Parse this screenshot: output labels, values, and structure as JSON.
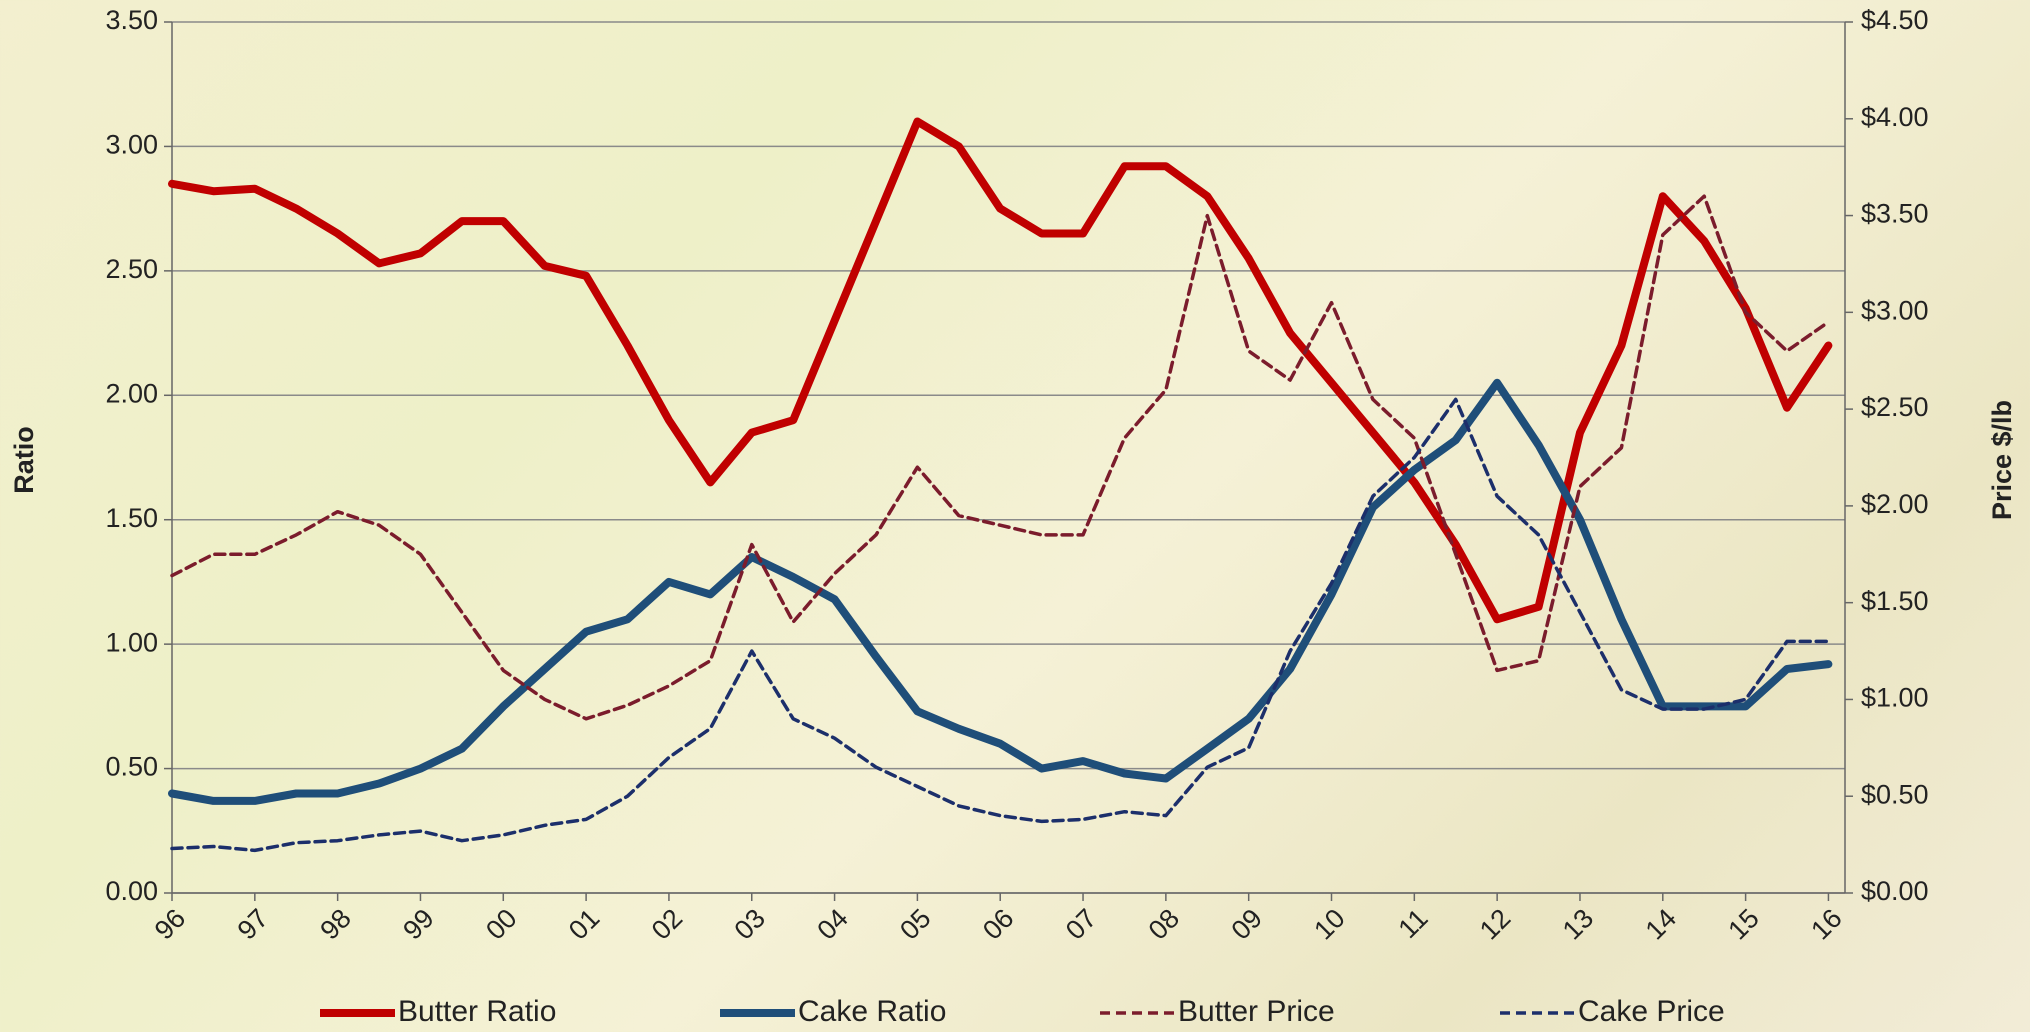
{
  "chart_data": {
    "type": "line",
    "xlabel_none": null,
    "ylabel": "Ratio",
    "y2label": "Price $/lb",
    "x": [
      1996,
      1996.5,
      1997,
      1997.5,
      1998,
      1998.5,
      1999,
      1999.5,
      2000,
      2000.5,
      2001,
      2001.5,
      2002,
      2002.5,
      2003,
      2003.5,
      2004,
      2004.5,
      2005,
      2005.5,
      2006,
      2006.5,
      2007,
      2007.5,
      2008,
      2008.5,
      2009,
      2009.5,
      2010,
      2010.5,
      2011,
      2011.5,
      2012,
      2012.5,
      2013,
      2013.5,
      2014,
      2014.5,
      2015,
      2015.5,
      2016
    ],
    "xlim": [
      1996,
      2016.2
    ],
    "xticks": [
      {
        "value": 1996,
        "label": "96"
      },
      {
        "value": 1997,
        "label": "97"
      },
      {
        "value": 1998,
        "label": "98"
      },
      {
        "value": 1999,
        "label": "99"
      },
      {
        "value": 2000,
        "label": "00"
      },
      {
        "value": 2001,
        "label": "01"
      },
      {
        "value": 2002,
        "label": "02"
      },
      {
        "value": 2003,
        "label": "03"
      },
      {
        "value": 2004,
        "label": "04"
      },
      {
        "value": 2005,
        "label": "05"
      },
      {
        "value": 2006,
        "label": "06"
      },
      {
        "value": 2007,
        "label": "07"
      },
      {
        "value": 2008,
        "label": "08"
      },
      {
        "value": 2009,
        "label": "09"
      },
      {
        "value": 2010,
        "label": "10"
      },
      {
        "value": 2011,
        "label": "11"
      },
      {
        "value": 2012,
        "label": "12"
      },
      {
        "value": 2013,
        "label": "13"
      },
      {
        "value": 2014,
        "label": "14"
      },
      {
        "value": 2015,
        "label": "15"
      },
      {
        "value": 2016,
        "label": "16"
      }
    ],
    "ylim": [
      0,
      3.5
    ],
    "yticks": [
      {
        "value": 0,
        "label": "0.00"
      },
      {
        "value": 0.5,
        "label": "0.50"
      },
      {
        "value": 1,
        "label": "1.00"
      },
      {
        "value": 1.5,
        "label": "1.50"
      },
      {
        "value": 2,
        "label": "2.00"
      },
      {
        "value": 2.5,
        "label": "2.50"
      },
      {
        "value": 3,
        "label": "3.00"
      },
      {
        "value": 3.5,
        "label": "3.50"
      }
    ],
    "y2lim": [
      0,
      4.5
    ],
    "y2ticks": [
      {
        "value": 0,
        "label": "$0.00"
      },
      {
        "value": 0.5,
        "label": "$0.50"
      },
      {
        "value": 1,
        "label": "$1.00"
      },
      {
        "value": 1.5,
        "label": "$1.50"
      },
      {
        "value": 2,
        "label": "$2.00"
      },
      {
        "value": 2.5,
        "label": "$2.50"
      },
      {
        "value": 3,
        "label": "$3.00"
      },
      {
        "value": 3.5,
        "label": "$3.50"
      },
      {
        "value": 4,
        "label": "$4.00"
      },
      {
        "value": 4.5,
        "label": "$4.50"
      }
    ],
    "grid": true,
    "legend": "bottom",
    "series": [
      {
        "name": "Butter Ratio",
        "color": "#c00000",
        "dash": "solid",
        "values": [
          2.85,
          2.82,
          2.83,
          2.75,
          2.65,
          2.53,
          2.57,
          2.7,
          2.7,
          2.52,
          2.48,
          2.2,
          1.9,
          1.65,
          1.85,
          1.9,
          2.3,
          2.7,
          3.1,
          3.0,
          2.75,
          2.65,
          2.65,
          2.92,
          2.92,
          2.8,
          2.55,
          2.25,
          2.05,
          1.85,
          1.65,
          1.4,
          1.1,
          1.15,
          1.85,
          2.2,
          2.8,
          2.62,
          2.35,
          1.95,
          2.2
        ]
      },
      {
        "name": "Cake Ratio",
        "color": "#1f4e79",
        "dash": "solid",
        "values": [
          0.4,
          0.37,
          0.37,
          0.4,
          0.4,
          0.44,
          0.5,
          0.58,
          0.75,
          0.9,
          1.05,
          1.1,
          1.25,
          1.2,
          1.35,
          1.27,
          1.18,
          0.95,
          0.73,
          0.66,
          0.6,
          0.5,
          0.53,
          0.48,
          0.46,
          0.58,
          0.7,
          0.9,
          1.2,
          1.55,
          1.7,
          1.82,
          2.05,
          1.8,
          1.5,
          1.1,
          0.75,
          0.75,
          0.75,
          0.9,
          0.92
        ]
      },
      {
        "name": "Butter Price",
        "color": "#7b1c2c",
        "dash": "dashed",
        "axis": "y2",
        "values": [
          1.64,
          1.75,
          1.75,
          1.85,
          1.97,
          1.9,
          1.75,
          1.45,
          1.15,
          1.0,
          0.9,
          0.97,
          1.07,
          1.2,
          1.8,
          1.4,
          1.65,
          1.85,
          2.2,
          1.95,
          1.9,
          1.85,
          1.85,
          2.35,
          2.6,
          3.5,
          2.8,
          2.65,
          3.05,
          2.55,
          2.35,
          1.75,
          1.15,
          1.2,
          2.1,
          2.3,
          3.4,
          3.6,
          3.0,
          2.8,
          2.95
        ]
      },
      {
        "name": "Cake Price",
        "color": "#1c2f6b",
        "dash": "dashed",
        "axis": "y2",
        "values": [
          0.23,
          0.24,
          0.22,
          0.26,
          0.27,
          0.3,
          0.32,
          0.27,
          0.3,
          0.35,
          0.38,
          0.5,
          0.7,
          0.85,
          1.25,
          0.9,
          0.8,
          0.65,
          0.55,
          0.45,
          0.4,
          0.37,
          0.38,
          0.42,
          0.4,
          0.65,
          0.75,
          1.25,
          1.6,
          2.05,
          2.25,
          2.55,
          2.05,
          1.85,
          1.45,
          1.05,
          0.95,
          0.95,
          1.0,
          1.3,
          1.3
        ]
      }
    ]
  }
}
